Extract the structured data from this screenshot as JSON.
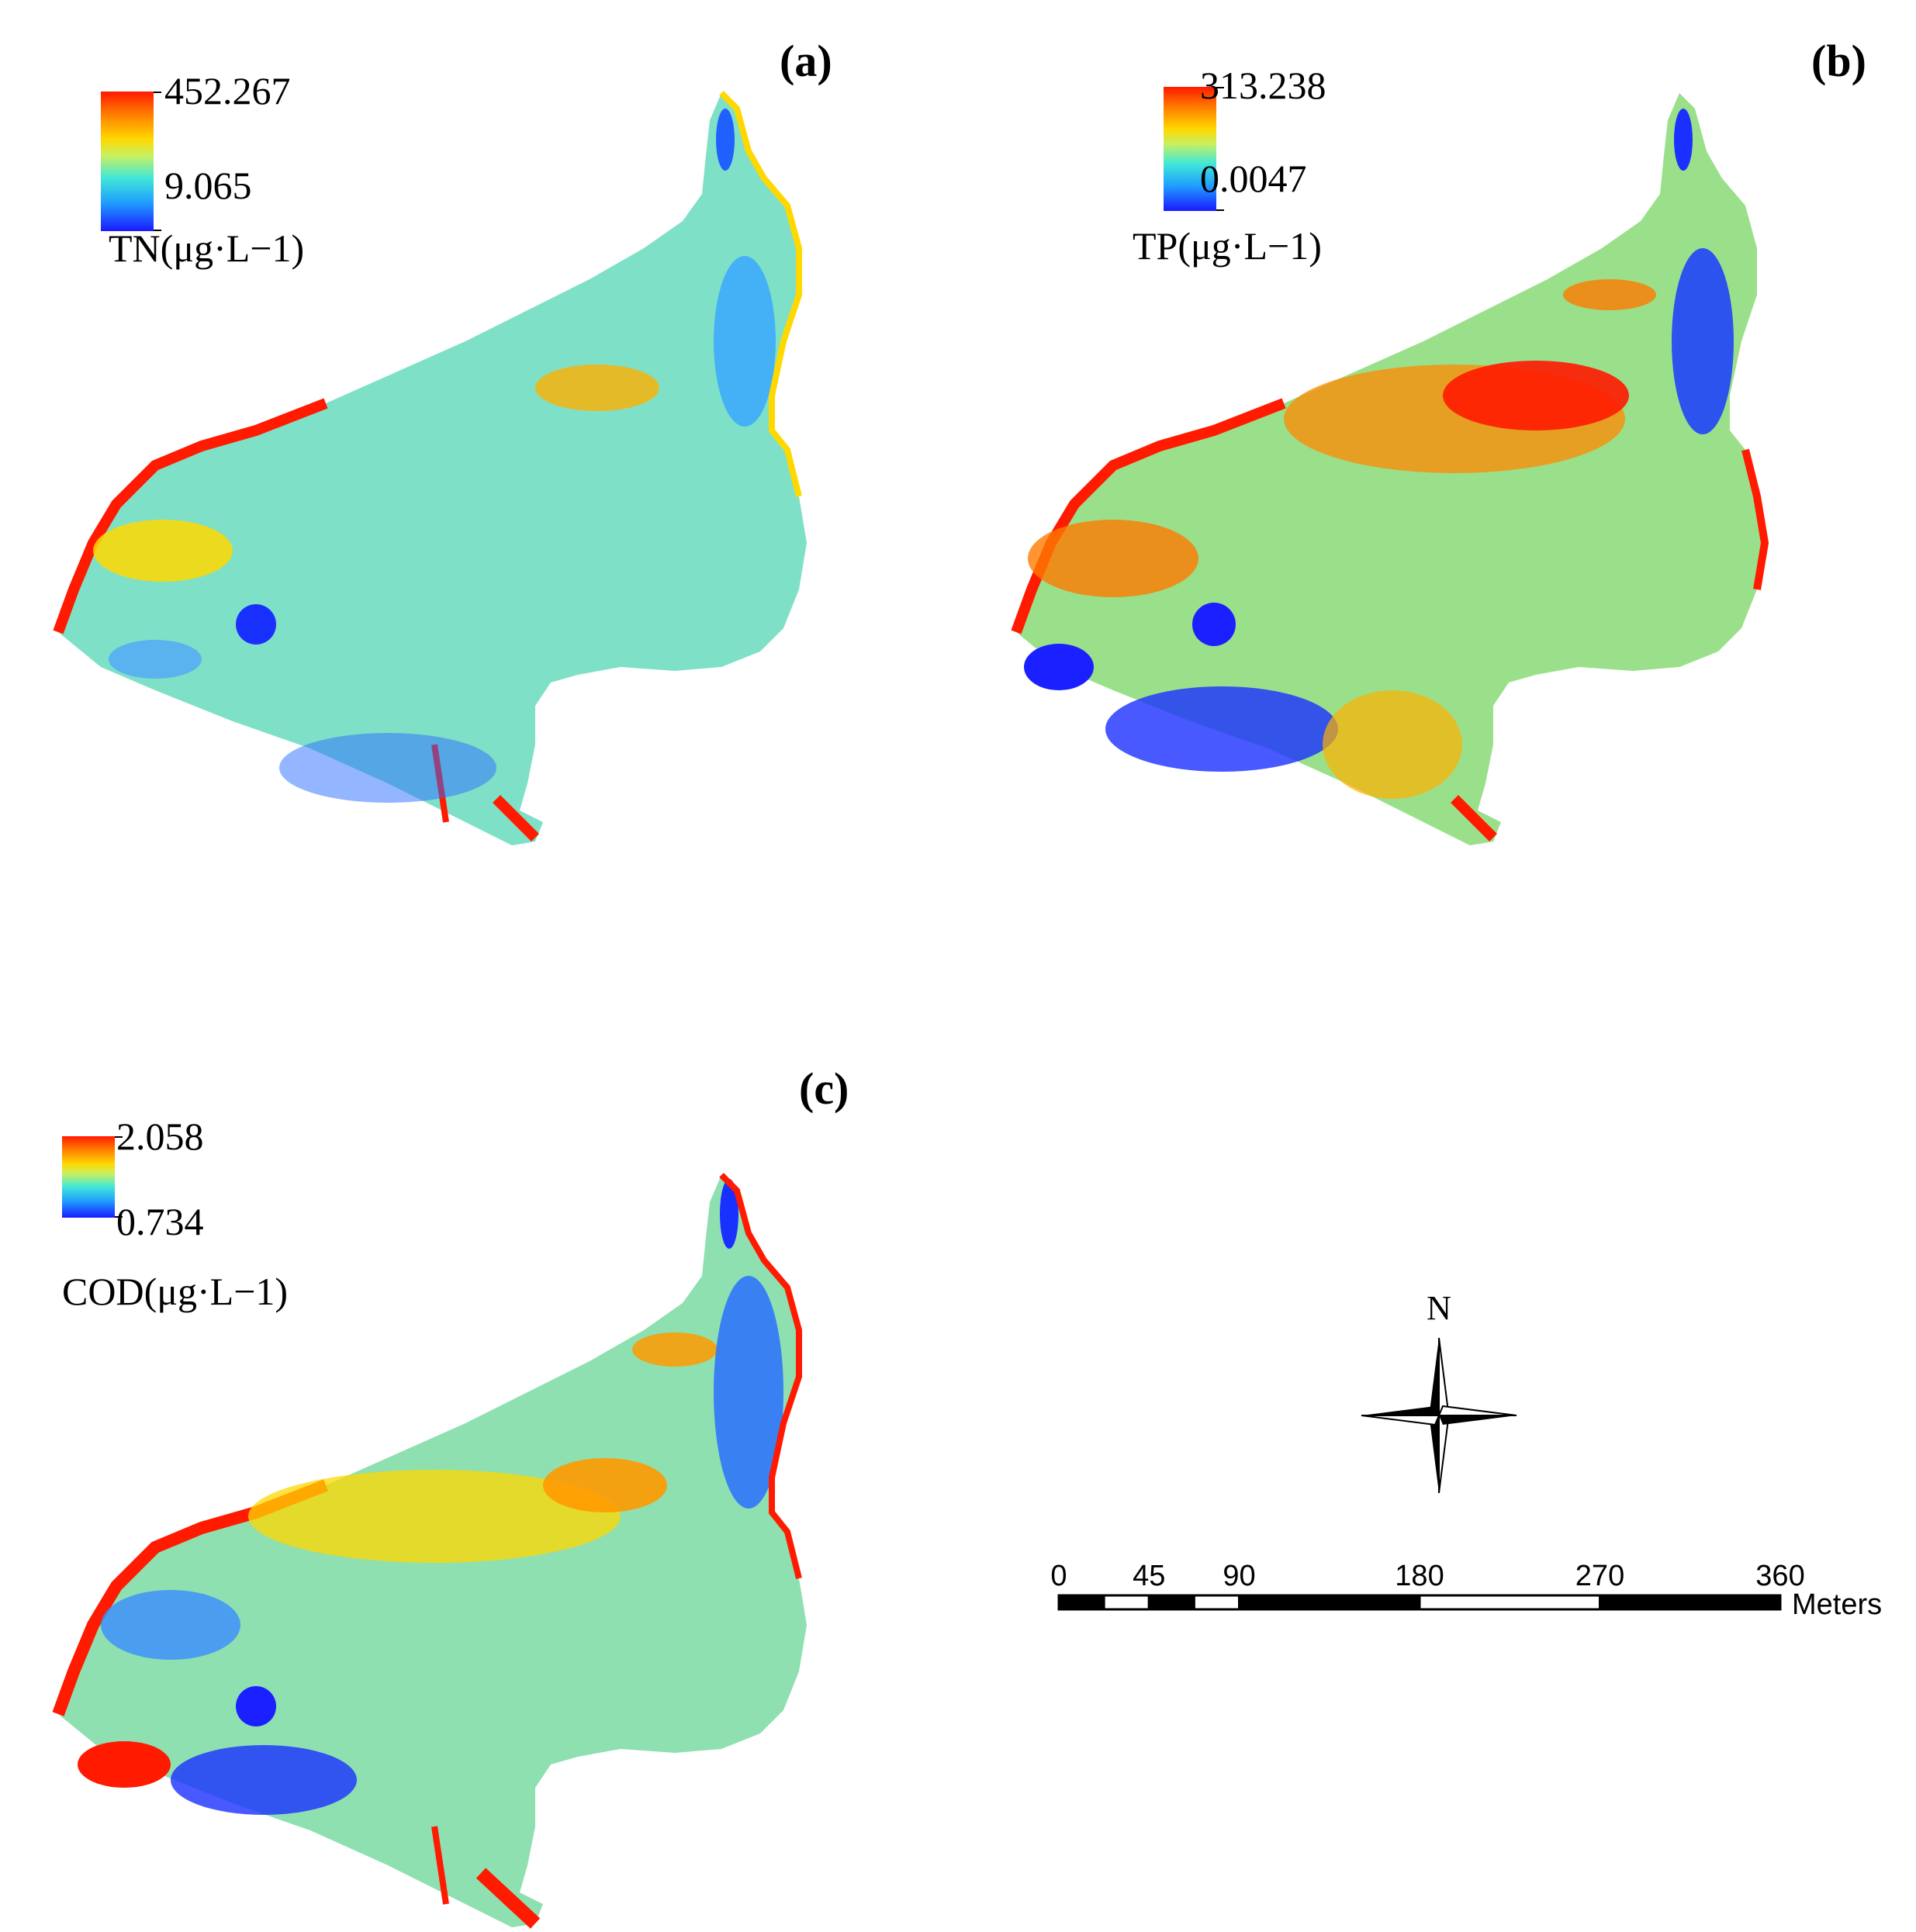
{
  "panels": [
    {
      "label": "(a)",
      "legend": {
        "max": "452.267",
        "min": "9.065",
        "title": "TN(μg·L−1)"
      }
    },
    {
      "label": "(b)",
      "legend": {
        "max": "313.238",
        "min": "0.0047",
        "title": "TP(μg·L−1)"
      }
    },
    {
      "label": "(c)",
      "legend": {
        "max": "2.058",
        "min": "0.734",
        "title": "COD(μg·L−1)"
      }
    }
  ],
  "north_arrow": {
    "letter": "N"
  },
  "scale_bar": {
    "ticks": [
      "0",
      "45",
      "90",
      "180",
      "270",
      "360"
    ],
    "tick_values": [
      0,
      45,
      90,
      180,
      270,
      360
    ],
    "unit": "Meters"
  },
  "colors": {
    "high": "#ff1a00",
    "mid_high": "#ffd800",
    "mid": "#40e8d8",
    "low": "#1a1aff"
  }
}
